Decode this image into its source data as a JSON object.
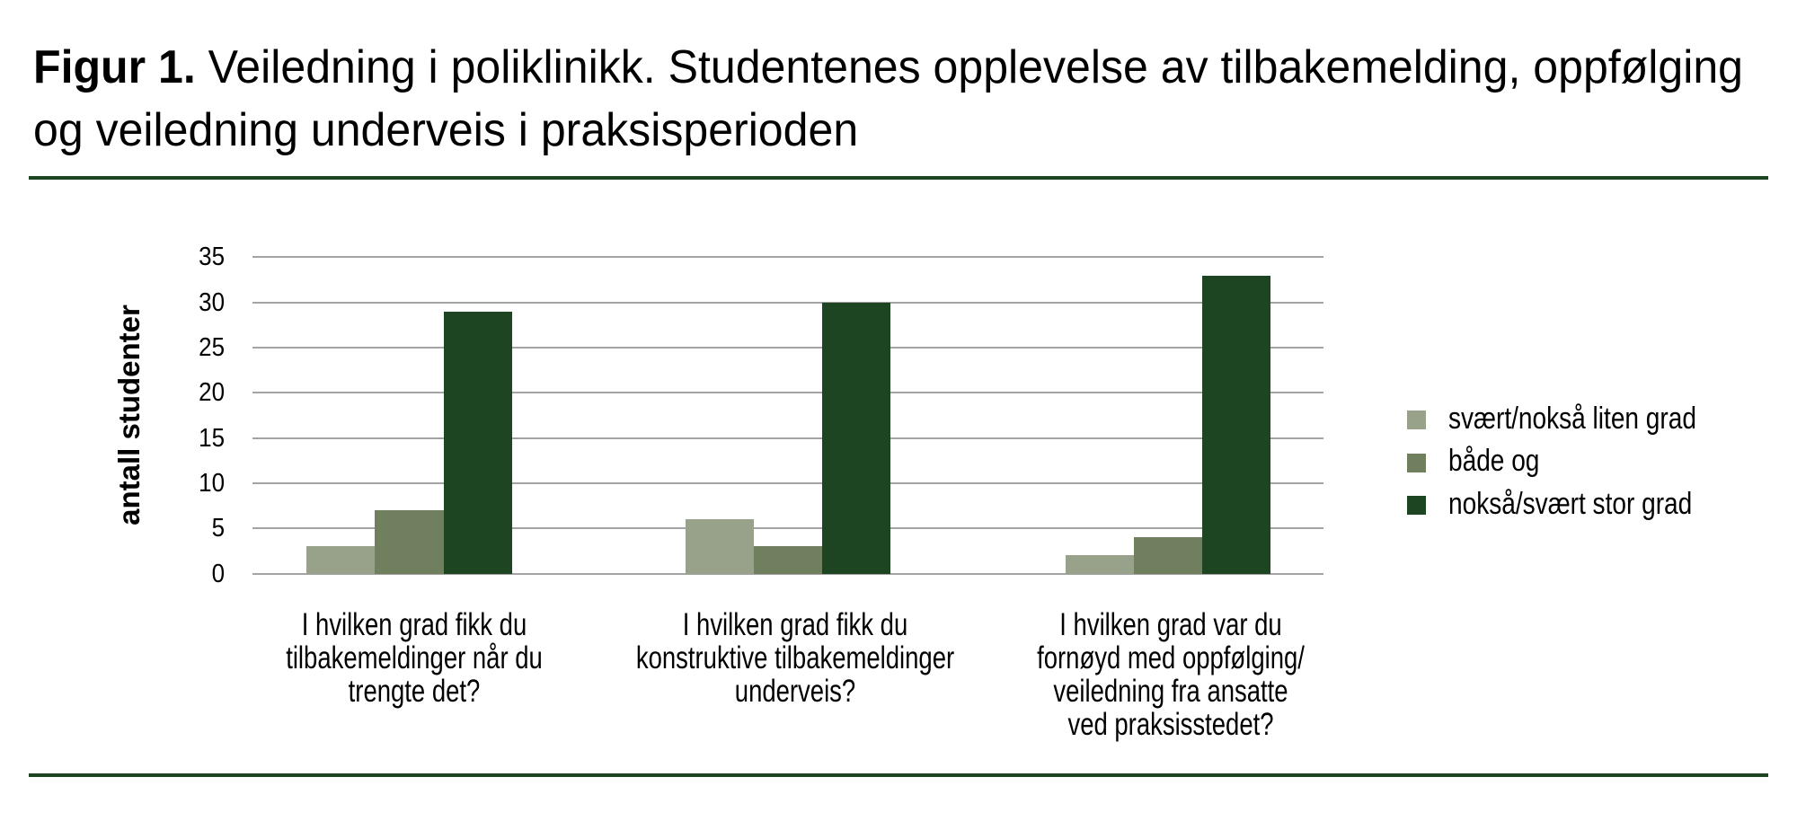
{
  "title": {
    "bold_prefix": "Figur 1.",
    "text_after_bold": " Veiledning i poliklinikk. Studentenes opplevelse av tilbakemelding, oppfølging og veiledning underveis i praksisperioden"
  },
  "rules": {
    "color": "#1e4521"
  },
  "chart_data": {
    "type": "bar",
    "title": "",
    "xlabel": "",
    "ylabel": "antall studenter",
    "ylim": [
      0,
      35
    ],
    "yticks": [
      0,
      5,
      10,
      15,
      20,
      25,
      30,
      35
    ],
    "grid": true,
    "legend_position": "right",
    "categories": [
      "I hvilken grad fikk du\ntilbakemeldinger når du\ntrengte det?",
      "I hvilken grad fikk du\nkonstruktive tilbakemeldinger\nunderveis?",
      "I hvilken grad var du\nfornøyd med oppfølging/\nveiledning fra ansatte\nved praksisstedet?"
    ],
    "series": [
      {
        "name": "svært/nokså liten grad",
        "color": "#98a189",
        "values": [
          3,
          6,
          2
        ]
      },
      {
        "name": "både og",
        "color": "#70805e",
        "values": [
          7,
          3,
          4
        ]
      },
      {
        "name": "nokså/svært stor grad",
        "color": "#1e4521",
        "values": [
          29,
          30,
          33
        ]
      }
    ],
    "colors": {
      "gridline": "#a3a3a3",
      "text": "#000000"
    }
  }
}
